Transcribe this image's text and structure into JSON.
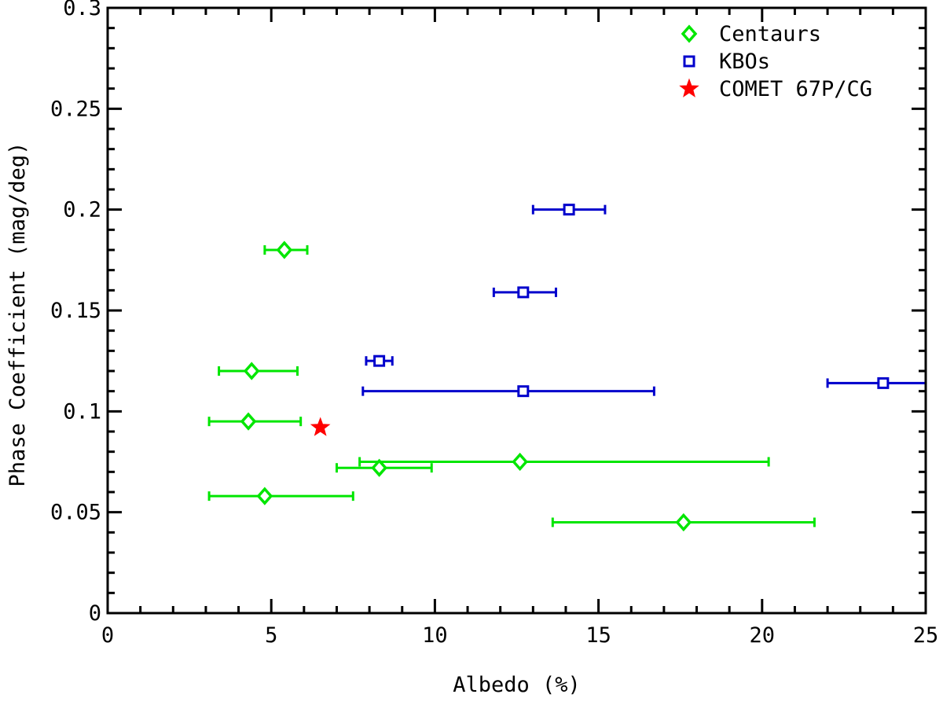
{
  "chart_data": {
    "type": "scatter",
    "xlabel": "Albedo (%)",
    "ylabel": "Phase Coefficient (mag/deg)",
    "xlim": [
      0,
      25
    ],
    "ylim": [
      0,
      0.3
    ],
    "x_ticks": [
      0,
      5,
      10,
      15,
      20,
      25
    ],
    "x_tick_labels": [
      "0",
      "5",
      "10",
      "15",
      "20",
      "25"
    ],
    "y_ticks": [
      0,
      0.05,
      0.1,
      0.15,
      0.2,
      0.25,
      0.3
    ],
    "y_tick_labels": [
      "0",
      "0.05",
      "0.1",
      "0.15",
      "0.2",
      "0.25",
      "0.3"
    ],
    "grid": false,
    "legend_position": "top-right",
    "series": [
      {
        "name": "Centaurs",
        "marker": "diamond-icon",
        "color": "#00e600",
        "points": [
          {
            "x": 5.4,
            "y": 0.18,
            "xerr": [
              4.8,
              6.1
            ]
          },
          {
            "x": 4.4,
            "y": 0.12,
            "xerr": [
              3.4,
              5.8
            ]
          },
          {
            "x": 4.3,
            "y": 0.095,
            "xerr": [
              3.1,
              5.9
            ]
          },
          {
            "x": 8.3,
            "y": 0.072,
            "xerr": [
              7.0,
              9.9
            ]
          },
          {
            "x": 12.6,
            "y": 0.075,
            "xerr": [
              7.7,
              20.2
            ]
          },
          {
            "x": 4.8,
            "y": 0.058,
            "xerr": [
              3.1,
              7.5
            ]
          },
          {
            "x": 17.6,
            "y": 0.045,
            "xerr": [
              13.6,
              21.6
            ]
          }
        ]
      },
      {
        "name": "KBOs",
        "marker": "square-icon",
        "color": "#0000cc",
        "points": [
          {
            "x": 14.1,
            "y": 0.2,
            "xerr": [
              13.0,
              15.2
            ]
          },
          {
            "x": 12.7,
            "y": 0.159,
            "xerr": [
              11.8,
              13.7
            ]
          },
          {
            "x": 8.3,
            "y": 0.125,
            "xerr": [
              7.9,
              8.7
            ]
          },
          {
            "x": 12.7,
            "y": 0.11,
            "xerr": [
              7.8,
              16.7
            ]
          },
          {
            "x": 23.7,
            "y": 0.114,
            "xerr": [
              22.0,
              25.0
            ]
          }
        ]
      },
      {
        "name": "COMET 67P/CG",
        "marker": "star-icon",
        "color": "#ff0000",
        "points": [
          {
            "x": 6.5,
            "y": 0.092,
            "xerr": null
          }
        ]
      }
    ]
  }
}
